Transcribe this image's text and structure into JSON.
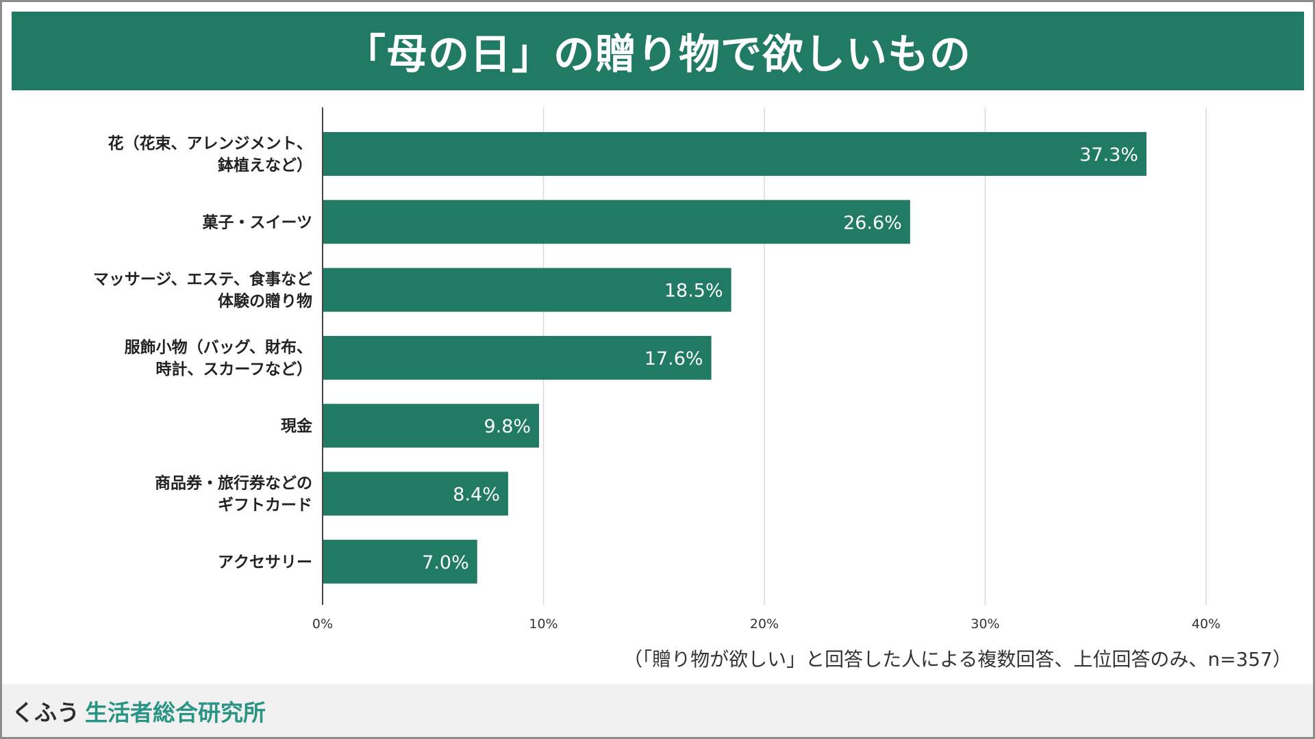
{
  "title": "「母の日」の贈り物で欲しいもの",
  "note": "（「贈り物が欲しい」と回答した人による複数回答、上位回答のみ、n=357）",
  "footer": {
    "brand_main": "くふう",
    "brand_sub": "生活者総合研究所"
  },
  "colors": {
    "bar": "#217a64",
    "grid": "#d9d9d9",
    "brand": "#2a9484"
  },
  "chart_data": {
    "type": "bar",
    "orientation": "horizontal",
    "title": "「母の日」の贈り物で欲しいもの",
    "categories": [
      [
        "花（花束、アレンジメント、",
        "鉢植えなど）"
      ],
      [
        "菓子・スイーツ"
      ],
      [
        "マッサージ、エステ、食事など",
        "体験の贈り物"
      ],
      [
        "服飾小物（バッグ、財布、",
        "時計、スカーフなど）"
      ],
      [
        "現金"
      ],
      [
        "商品券・旅行券などの",
        "ギフトカード"
      ],
      [
        "アクセサリー"
      ]
    ],
    "values": [
      37.3,
      26.6,
      18.5,
      17.6,
      9.8,
      8.4,
      7.0
    ],
    "value_labels": [
      "37.3%",
      "26.6%",
      "18.5%",
      "17.6%",
      "9.8%",
      "8.4%",
      "7.0%"
    ],
    "xlim": [
      0,
      40
    ],
    "ticks": [
      0,
      10,
      20,
      30,
      40
    ],
    "tick_labels": [
      "0%",
      "10%",
      "20%",
      "30%",
      "40%"
    ],
    "grid": true,
    "xlabel": "",
    "ylabel": ""
  }
}
